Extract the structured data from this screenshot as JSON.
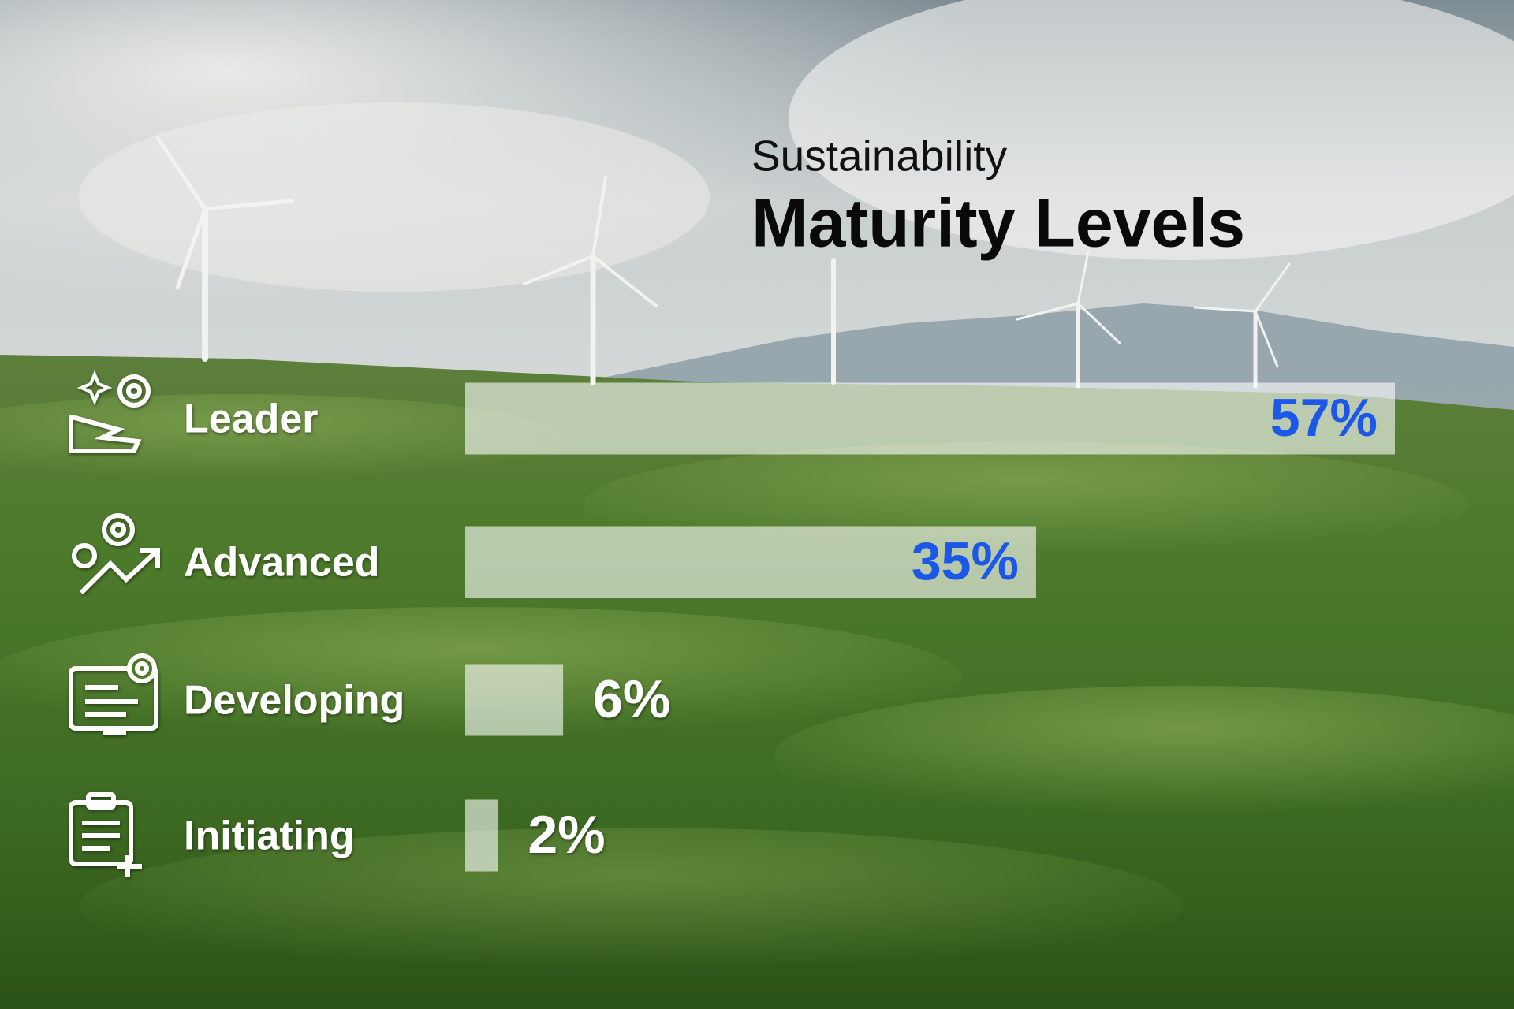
{
  "chart_data": {
    "type": "bar",
    "orientation": "horizontal",
    "title": "Sustainability",
    "subtitle": "Maturity Levels",
    "categories": [
      "Leader",
      "Advanced",
      "Developing",
      "Initiating"
    ],
    "values": [
      57,
      35,
      6,
      2
    ],
    "value_labels": [
      "57%",
      "35%",
      "6%",
      "2%"
    ],
    "color": "rgba(255,255,255,0.6)",
    "label_color": "#1c58e8"
  }
}
